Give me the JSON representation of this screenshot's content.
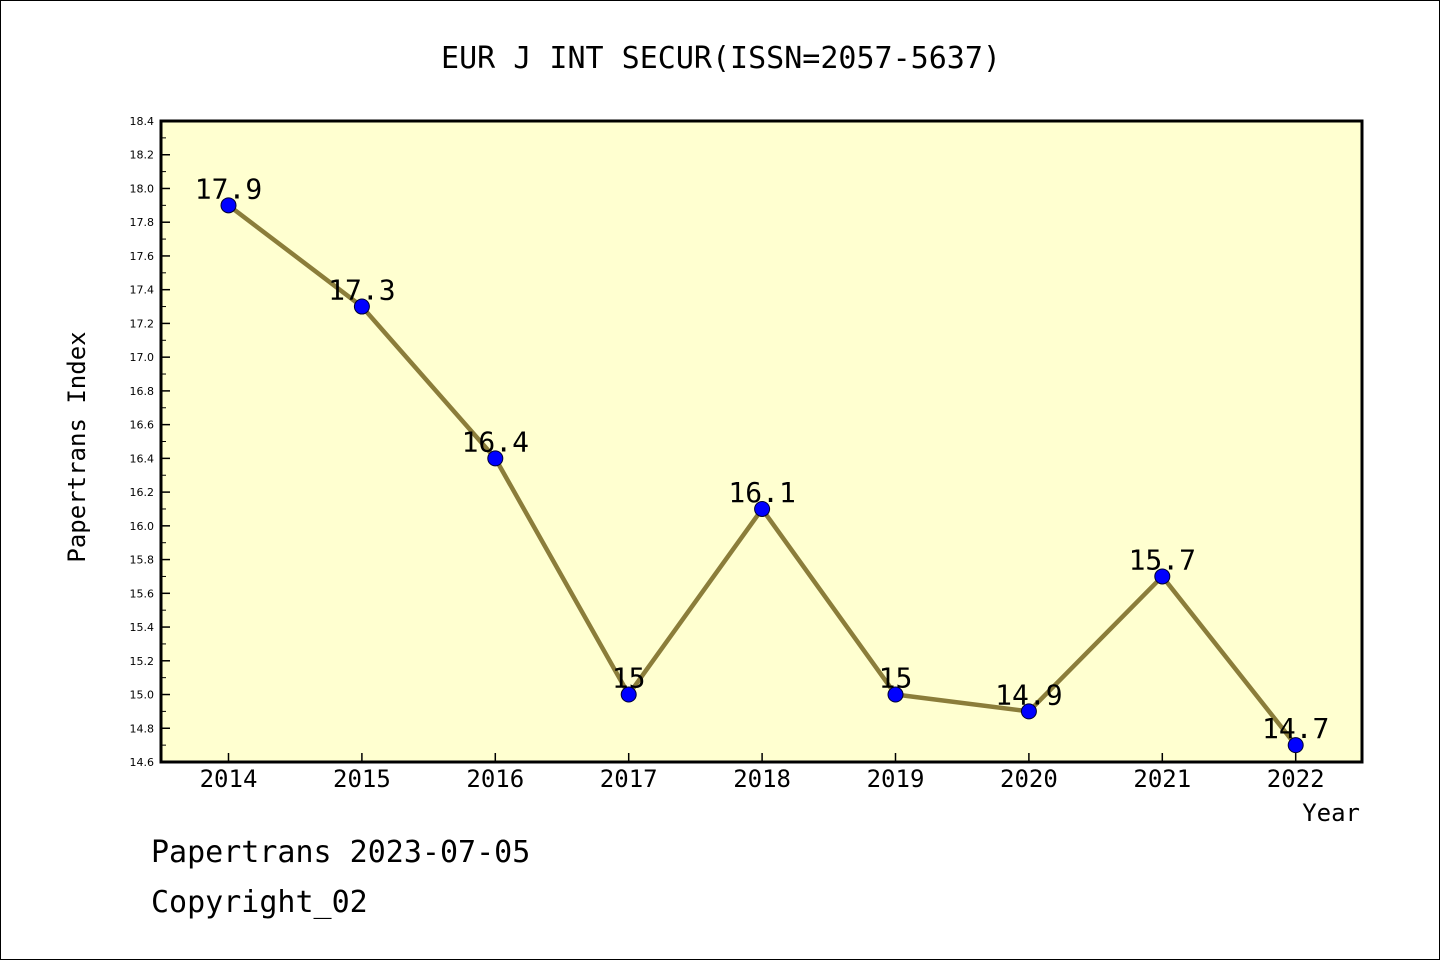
{
  "chart_data": {
    "type": "line",
    "title": "EUR J INT SECUR(ISSN=2057-5637)",
    "xlabel": "Year",
    "ylabel": "Papertrans Index",
    "categories": [
      "2014",
      "2015",
      "2016",
      "2017",
      "2018",
      "2019",
      "2020",
      "2021",
      "2022"
    ],
    "series": [
      {
        "values": [
          17.9,
          17.3,
          16.4,
          15.0,
          16.1,
          15.0,
          14.9,
          15.7,
          14.7
        ],
        "point_labels": [
          "17.9",
          "17.3",
          "16.4",
          "15",
          "16.1",
          "15",
          "14.9",
          "15.7",
          "14.7"
        ],
        "line_color": "#8b7d3a",
        "marker_color": "#0000ff"
      }
    ],
    "ylim": [
      14.6,
      18.4
    ],
    "y_ticks": [
      "14.6",
      "14.8",
      "15.0",
      "15.2",
      "15.4",
      "15.6",
      "15.8",
      "16.0",
      "16.2",
      "16.4",
      "16.6",
      "16.8",
      "17.0",
      "17.2",
      "17.4",
      "17.6",
      "17.8",
      "18.0",
      "18.2",
      "18.4"
    ],
    "plot_background": "#ffffd0",
    "grid": false,
    "legend": "none"
  },
  "footer": {
    "line1": "Papertrans 2023-07-05",
    "line2": "Copyright_02"
  }
}
